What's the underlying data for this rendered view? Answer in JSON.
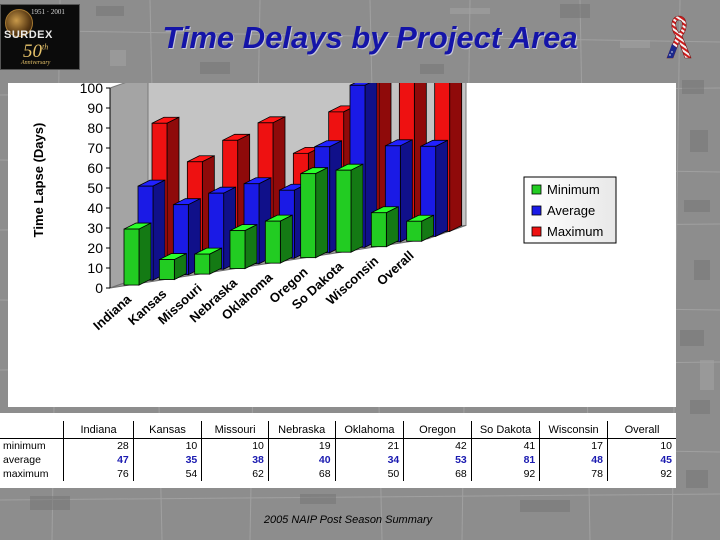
{
  "slide": {
    "title": "Time Delays by Project Area",
    "footer": "2005 NAIP Post Season Summary"
  },
  "logo": {
    "years": "1951 · 2001",
    "name": "SURDEX",
    "anniversary_number": "50",
    "anniversary_suffix": "th",
    "anniversary_word": "Anniversary"
  },
  "colors": {
    "title": "#1414a8",
    "minimum": "#22cc22",
    "average": "#1a1ae6",
    "maximum": "#ee1111"
  },
  "chart_data": {
    "type": "bar",
    "title": "",
    "xlabel": "",
    "ylabel": "Time Lapse (Days)",
    "ylim": [
      0,
      100
    ],
    "yticks": [
      0,
      10,
      20,
      30,
      40,
      50,
      60,
      70,
      80,
      90,
      100
    ],
    "categories": [
      "Indiana",
      "Kansas",
      "Missouri",
      "Nebraska",
      "Oklahoma",
      "Oregon",
      "So Dakota",
      "Wisconsin",
      "Overall"
    ],
    "series": [
      {
        "name": "Minimum",
        "values": [
          28,
          10,
          10,
          19,
          21,
          42,
          41,
          17,
          10
        ]
      },
      {
        "name": "Average",
        "values": [
          47,
          35,
          38,
          40,
          34,
          53,
          81,
          48,
          45
        ]
      },
      {
        "name": "Maximum",
        "values": [
          76,
          54,
          62,
          68,
          50,
          68,
          92,
          78,
          92
        ]
      }
    ],
    "legend_placement": "right",
    "grid": false,
    "style": "3d-clustered"
  },
  "table": {
    "headers": [
      "Indiana",
      "Kansas",
      "Missouri",
      "Nebraska",
      "Oklahoma",
      "Oregon",
      "So Dakota",
      "Wisconsin",
      "Overall"
    ],
    "rows": [
      {
        "label": "minimum",
        "values": [
          "28",
          "10",
          "10",
          "19",
          "21",
          "42",
          "41",
          "17",
          "10"
        ]
      },
      {
        "label": "average",
        "values": [
          "47",
          "35",
          "38",
          "40",
          "34",
          "53",
          "81",
          "48",
          "45"
        ]
      },
      {
        "label": "maximum",
        "values": [
          "76",
          "54",
          "62",
          "68",
          "50",
          "68",
          "92",
          "78",
          "92"
        ]
      }
    ]
  }
}
